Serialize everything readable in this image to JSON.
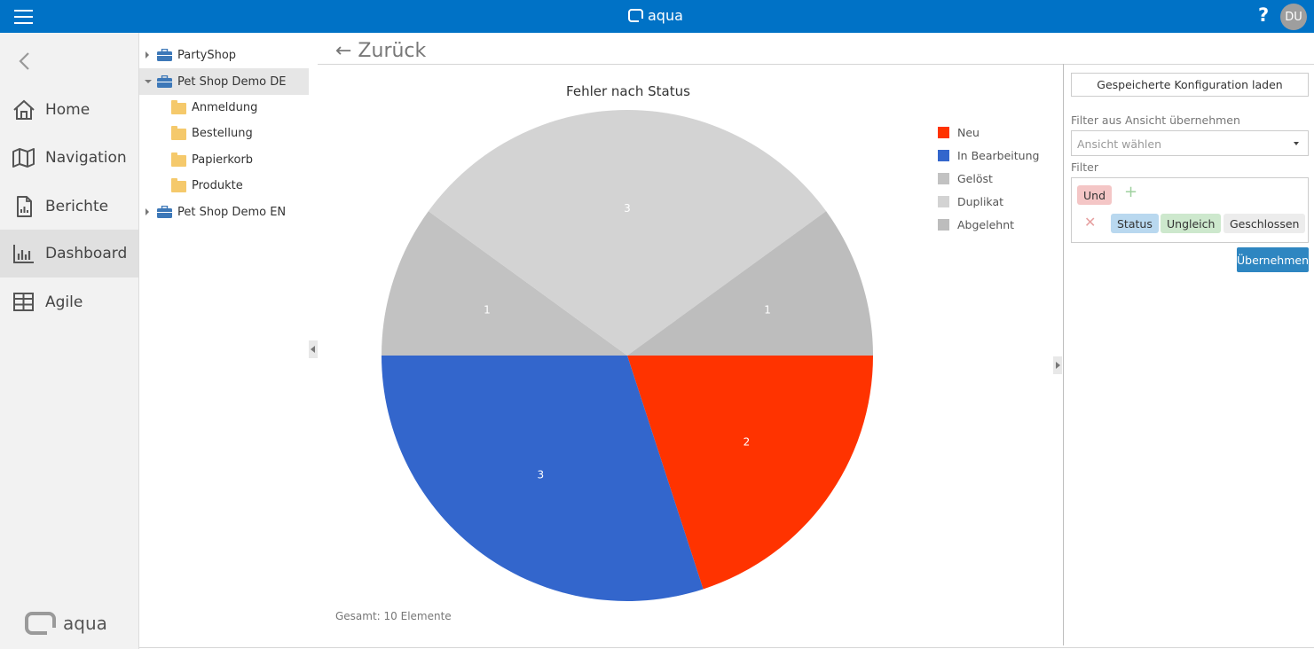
{
  "header": {
    "app_name": "aqua",
    "help_label": "?",
    "user_initials": "DU",
    "brand_color": "#0072c6"
  },
  "sidebar": {
    "items": [
      {
        "label": "Home",
        "icon": "home-icon"
      },
      {
        "label": "Navigation",
        "icon": "map-icon"
      },
      {
        "label": "Berichte",
        "icon": "report-icon"
      },
      {
        "label": "Dashboard",
        "icon": "bar-chart-icon",
        "active": true
      },
      {
        "label": "Agile",
        "icon": "grid-icon"
      }
    ],
    "footer_logo": "aqua"
  },
  "tree": {
    "items": [
      {
        "label": "PartyShop",
        "type": "project",
        "expanded": false
      },
      {
        "label": "Pet Shop Demo DE",
        "type": "project",
        "expanded": true,
        "selected": true
      },
      {
        "label": "Anmeldung",
        "type": "folder"
      },
      {
        "label": "Bestellung",
        "type": "folder"
      },
      {
        "label": "Papierkorb",
        "type": "folder"
      },
      {
        "label": "Produkte",
        "type": "folder"
      },
      {
        "label": "Pet Shop Demo EN",
        "type": "project",
        "expanded": false
      }
    ]
  },
  "main": {
    "back_label": "← Zurück",
    "total_label": "Gesamt: 10 Elemente"
  },
  "chart_data": {
    "type": "pie",
    "title": "Fehler nach Status",
    "slices": [
      {
        "label": "Neu",
        "value": 2,
        "color": "#ff3300"
      },
      {
        "label": "In Bearbeitung",
        "value": 3,
        "color": "#3366cc"
      },
      {
        "label": "Gelöst",
        "value": 1,
        "color": "#c2c2c2"
      },
      {
        "label": "Duplikat",
        "value": 3,
        "color": "#d3d3d3"
      },
      {
        "label": "Abgelehnt",
        "value": 1,
        "color": "#bdbdbd"
      }
    ],
    "legend_position": "right"
  },
  "config_panel": {
    "load_button": "Gespeicherte Konfiguration laden",
    "view_filter_label": "Filter aus Ansicht übernehmen",
    "view_select_placeholder": "Ansicht wählen",
    "filter_label": "Filter",
    "conjunction": "Und",
    "condition": {
      "field": "Status",
      "operator": "Ungleich",
      "value": "Geschlossen"
    },
    "apply_button": "Übernehmen"
  }
}
